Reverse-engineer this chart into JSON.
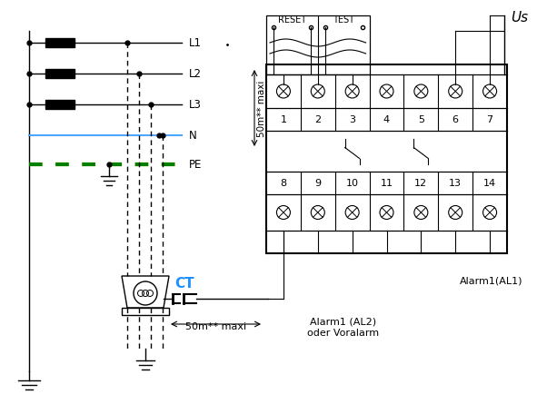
{
  "bg_color": "#ffffff",
  "line_color": "#000000",
  "n_wire_color": "#4da6ff",
  "pe_wire_color_yellow": "#e8c000",
  "pe_wire_color_green": "#008000",
  "ct_label_color": "#1e90ff",
  "labels_L": [
    "L1",
    "L2",
    "L3"
  ],
  "label_N": "N",
  "label_PE": "PE",
  "label_CT": "CT",
  "label_Us": "Us",
  "label_RESET": "RESET",
  "label_TEST": "TEST",
  "terminal_top": [
    "1",
    "2",
    "3",
    "4",
    "5",
    "6",
    "7"
  ],
  "terminal_bot": [
    "8",
    "9",
    "10",
    "11",
    "12",
    "13",
    "14"
  ],
  "label_alarm1": "Alarm1(AL1)",
  "label_alarm2": "Alarm1 (AL2)\noder Voralarm",
  "label_dim1": "50m** maxi",
  "label_dim2": "50m** maxi"
}
